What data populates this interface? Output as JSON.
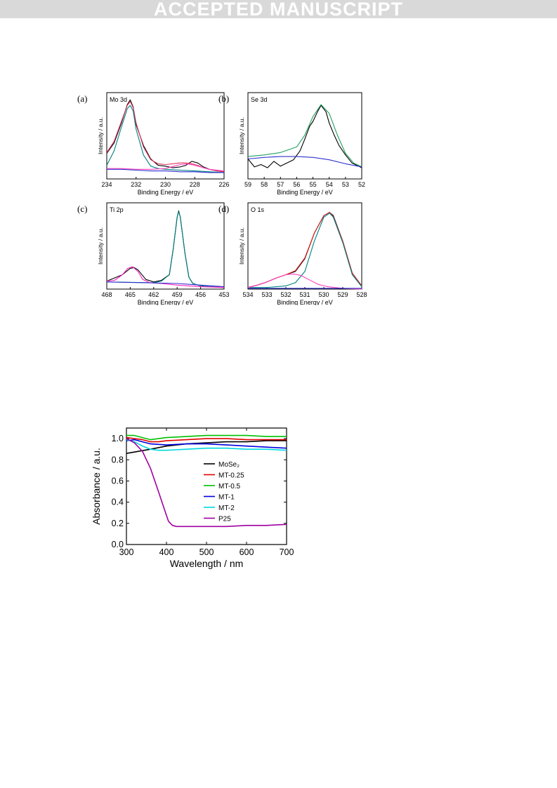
{
  "banner": {
    "text": "ACCEPTED MANUSCRIPT"
  },
  "figure_xps": {
    "panels": [
      {
        "letter": "(a)",
        "label": "Mo 3d",
        "ylabel": "Intensity / a.u.",
        "xlabel": "Binding Energy / eV"
      },
      {
        "letter": "(b)",
        "label": "Se 3d",
        "ylabel": "Intensity / a.u.",
        "xlabel": "Binding Energy / eV"
      },
      {
        "letter": "(c)",
        "label": "Ti 2p",
        "ylabel": "Intensity / a.u.",
        "xlabel": "Binding Energy / eV"
      },
      {
        "letter": "(d)",
        "label": "O 1s",
        "ylabel": "Intensity / a.u.",
        "xlabel": "Binding Energy / eV"
      }
    ]
  },
  "chart_data": [
    {
      "type": "line",
      "panel": "(a)",
      "title": "Mo 3d",
      "xlabel": "Binding Energy / eV",
      "ylabel": "Intensity / a.u.",
      "xlim": [
        234,
        226
      ],
      "xticks": [
        234,
        232,
        230,
        228,
        226
      ],
      "x_reversed": true,
      "series": [
        {
          "color": "#000000",
          "x": [
            234,
            233.5,
            233,
            232.6,
            232.4,
            232.2,
            232,
            231.5,
            231,
            230.5,
            230,
            229.5,
            229,
            228.6,
            228.2,
            227.8,
            227.4,
            227,
            226.5,
            226
          ],
          "y": [
            0.32,
            0.45,
            0.7,
            0.93,
            0.99,
            0.9,
            0.68,
            0.42,
            0.25,
            0.17,
            0.16,
            0.14,
            0.15,
            0.17,
            0.22,
            0.2,
            0.15,
            0.12,
            0.1,
            0.09
          ]
        },
        {
          "color": "#e0305a",
          "x": [
            234,
            233.5,
            233,
            232.6,
            232.4,
            232.2,
            232,
            231.5,
            231,
            230.5,
            230,
            229.5,
            229,
            228.6,
            228.2,
            227.8,
            227.4,
            227,
            226.5,
            226
          ],
          "y": [
            0.33,
            0.47,
            0.72,
            0.92,
            0.97,
            0.89,
            0.7,
            0.4,
            0.24,
            0.19,
            0.18,
            0.19,
            0.2,
            0.2,
            0.19,
            0.17,
            0.14,
            0.12,
            0.1,
            0.09
          ]
        },
        {
          "color": "#008080",
          "x": [
            234,
            233.5,
            233,
            232.6,
            232.4,
            232.2,
            232,
            231.5,
            231,
            230.5,
            230,
            229,
            228,
            227,
            226
          ],
          "y": [
            0.17,
            0.35,
            0.65,
            0.88,
            0.92,
            0.85,
            0.62,
            0.3,
            0.16,
            0.13,
            0.12,
            0.11,
            0.1,
            0.09,
            0.08
          ]
        },
        {
          "color": "#ff40c0",
          "x": [
            234,
            233,
            232,
            231,
            230,
            229,
            228.5,
            228,
            227,
            226
          ],
          "y": [
            0.13,
            0.13,
            0.12,
            0.12,
            0.13,
            0.18,
            0.19,
            0.17,
            0.12,
            0.1
          ]
        },
        {
          "color": "#3030d0",
          "x": [
            234,
            233,
            232,
            231,
            230,
            229,
            228,
            227,
            226
          ],
          "y": [
            0.12,
            0.12,
            0.11,
            0.1,
            0.1,
            0.09,
            0.09,
            0.08,
            0.08
          ]
        }
      ]
    },
    {
      "type": "line",
      "panel": "(b)",
      "title": "Se 3d",
      "xlabel": "Binding Energy / eV",
      "ylabel": "Intensity / a.u.",
      "xlim": [
        59,
        52
      ],
      "xticks": [
        59,
        58,
        57,
        56,
        55,
        54,
        53,
        52
      ],
      "x_reversed": true,
      "series": [
        {
          "color": "#000000",
          "x": [
            59,
            58.6,
            58.2,
            57.8,
            57.4,
            57,
            56.6,
            56.2,
            55.8,
            55.5,
            55.2,
            55,
            54.7,
            54.5,
            54.2,
            54,
            53.7,
            53.4,
            53,
            52.6,
            52.2,
            52
          ],
          "y": [
            0.25,
            0.15,
            0.18,
            0.14,
            0.22,
            0.16,
            0.2,
            0.24,
            0.35,
            0.5,
            0.66,
            0.72,
            0.85,
            0.92,
            0.84,
            0.7,
            0.55,
            0.42,
            0.3,
            0.2,
            0.16,
            0.14
          ]
        },
        {
          "color": "#20a060",
          "x": [
            59,
            58,
            57,
            56,
            55.5,
            55,
            54.5,
            54,
            53.5,
            53,
            52.5,
            52
          ],
          "y": [
            0.28,
            0.3,
            0.33,
            0.4,
            0.55,
            0.78,
            0.93,
            0.82,
            0.55,
            0.32,
            0.2,
            0.15
          ]
        },
        {
          "color": "#3030d0",
          "x": [
            59,
            58,
            57,
            56,
            55,
            54,
            53,
            52
          ],
          "y": [
            0.25,
            0.27,
            0.28,
            0.28,
            0.27,
            0.24,
            0.19,
            0.15
          ]
        }
      ]
    },
    {
      "type": "line",
      "panel": "(c)",
      "title": "Ti 2p",
      "xlabel": "Binding Energy / eV",
      "ylabel": "Intensity / a.u.",
      "xlim": [
        468,
        453
      ],
      "xticks": [
        468,
        465,
        462,
        459,
        456,
        453
      ],
      "x_reversed": true,
      "series": [
        {
          "color": "#000000",
          "x": [
            468,
            466,
            465,
            464.5,
            464,
            463,
            462,
            461,
            460,
            459.5,
            459,
            458.8,
            458.6,
            458,
            457.5,
            457,
            456,
            455,
            453
          ],
          "y": [
            0.1,
            0.18,
            0.26,
            0.27,
            0.24,
            0.12,
            0.09,
            0.11,
            0.18,
            0.5,
            0.9,
            0.98,
            0.9,
            0.45,
            0.15,
            0.07,
            0.04,
            0.03,
            0.02
          ]
        },
        {
          "color": "#008080",
          "x": [
            468,
            462,
            461,
            460,
            459.5,
            459,
            458.8,
            458.6,
            458,
            457.5,
            457,
            456,
            453
          ],
          "y": [
            0.09,
            0.08,
            0.1,
            0.18,
            0.5,
            0.9,
            0.97,
            0.9,
            0.45,
            0.15,
            0.07,
            0.04,
            0.02
          ]
        },
        {
          "color": "#ff20c0",
          "x": [
            468,
            467,
            466,
            465.3,
            464.7,
            464,
            463.4,
            462.5,
            461,
            459,
            456,
            453
          ],
          "y": [
            0.1,
            0.11,
            0.18,
            0.26,
            0.28,
            0.22,
            0.12,
            0.08,
            0.07,
            0.05,
            0.03,
            0.02
          ]
        },
        {
          "color": "#3030d0",
          "x": [
            468,
            463,
            459,
            456,
            453
          ],
          "y": [
            0.09,
            0.08,
            0.07,
            0.05,
            0.03
          ]
        }
      ]
    },
    {
      "type": "line",
      "panel": "(d)",
      "title": "O 1s",
      "xlabel": "Binding Energy / eV",
      "ylabel": "Intensity / a.u.",
      "xlim": [
        534,
        528
      ],
      "xticks": [
        534,
        533,
        532,
        531,
        530,
        529,
        528
      ],
      "x_reversed": true,
      "series": [
        {
          "color": "#000000",
          "x": [
            534,
            533.5,
            533,
            532.5,
            532,
            531.5,
            531,
            530.5,
            530,
            529.7,
            529.5,
            529,
            528.5,
            528
          ],
          "y": [
            0.02,
            0.05,
            0.09,
            0.14,
            0.18,
            0.22,
            0.38,
            0.7,
            0.92,
            0.96,
            0.92,
            0.6,
            0.2,
            0.04
          ]
        },
        {
          "color": "#e02020",
          "x": [
            534,
            533.5,
            533,
            532.5,
            532,
            531.5,
            531,
            530.5,
            530,
            529.7,
            529.5,
            529,
            528.5,
            528
          ],
          "y": [
            0.02,
            0.05,
            0.09,
            0.14,
            0.18,
            0.23,
            0.39,
            0.7,
            0.92,
            0.96,
            0.91,
            0.6,
            0.2,
            0.04
          ]
        },
        {
          "color": "#008080",
          "x": [
            534,
            533,
            532,
            531.5,
            531,
            530.5,
            530,
            529.7,
            529.5,
            529,
            528.5,
            528
          ],
          "y": [
            0.02,
            0.02,
            0.04,
            0.08,
            0.22,
            0.6,
            0.9,
            0.95,
            0.9,
            0.58,
            0.18,
            0.03
          ]
        },
        {
          "color": "#ff40c0",
          "x": [
            534,
            533.5,
            533,
            532.5,
            532,
            531.6,
            531.2,
            530.8,
            530.3,
            529.8,
            529,
            528
          ],
          "y": [
            0.02,
            0.05,
            0.09,
            0.14,
            0.18,
            0.19,
            0.17,
            0.12,
            0.06,
            0.03,
            0.01,
            0.0
          ]
        },
        {
          "color": "#3030d0",
          "x": [
            534,
            532,
            530,
            528
          ],
          "y": [
            0.01,
            0.01,
            0.01,
            0.01
          ]
        }
      ]
    },
    {
      "type": "line",
      "xlabel": "Wavelength / nm",
      "ylabel": "Absorbance / a.u.",
      "xlim": [
        300,
        700
      ],
      "ylim": [
        0.0,
        1.1
      ],
      "xticks": [
        300,
        400,
        500,
        600,
        700
      ],
      "yticks": [
        0.0,
        0.2,
        0.4,
        0.6,
        0.8,
        1.0
      ],
      "legend_position": "right",
      "series": [
        {
          "name": "MoSe₂",
          "color": "#000000",
          "x": [
            300,
            330,
            360,
            400,
            450,
            500,
            550,
            600,
            650,
            700
          ],
          "y": [
            0.86,
            0.88,
            0.9,
            0.93,
            0.95,
            0.96,
            0.97,
            0.97,
            0.98,
            0.98
          ]
        },
        {
          "name": "MT-0.25",
          "color": "#e00000",
          "x": [
            300,
            320,
            340,
            360,
            380,
            400,
            450,
            500,
            550,
            600,
            650,
            700
          ],
          "y": [
            1.01,
            1.0,
            0.99,
            0.97,
            0.97,
            0.98,
            0.99,
            1.0,
            1.0,
            0.99,
            0.99,
            0.99
          ]
        },
        {
          "name": "MT-0.5",
          "color": "#00c000",
          "x": [
            300,
            320,
            340,
            360,
            380,
            400,
            450,
            500,
            550,
            600,
            650,
            700
          ],
          "y": [
            1.03,
            1.03,
            1.01,
            0.99,
            1.0,
            1.01,
            1.02,
            1.03,
            1.03,
            1.03,
            1.02,
            1.02
          ]
        },
        {
          "name": "MT-1",
          "color": "#0000e0",
          "x": [
            300,
            320,
            340,
            360,
            400,
            450,
            500,
            550,
            600,
            650,
            700
          ],
          "y": [
            0.98,
            0.99,
            0.97,
            0.95,
            0.94,
            0.95,
            0.95,
            0.94,
            0.93,
            0.92,
            0.91
          ]
        },
        {
          "name": "MT-2",
          "color": "#00d8e0",
          "x": [
            300,
            320,
            340,
            360,
            380,
            400,
            450,
            500,
            550,
            600,
            650,
            700
          ],
          "y": [
            0.99,
            0.97,
            0.93,
            0.9,
            0.89,
            0.89,
            0.9,
            0.91,
            0.91,
            0.9,
            0.9,
            0.89
          ]
        },
        {
          "name": "P25",
          "color": "#a000a0",
          "x": [
            300,
            320,
            340,
            360,
            380,
            395,
            405,
            415,
            425,
            450,
            500,
            550,
            600,
            650,
            700
          ],
          "y": [
            1.0,
            0.96,
            0.88,
            0.72,
            0.5,
            0.33,
            0.22,
            0.18,
            0.17,
            0.17,
            0.17,
            0.17,
            0.18,
            0.18,
            0.19
          ]
        }
      ]
    }
  ]
}
